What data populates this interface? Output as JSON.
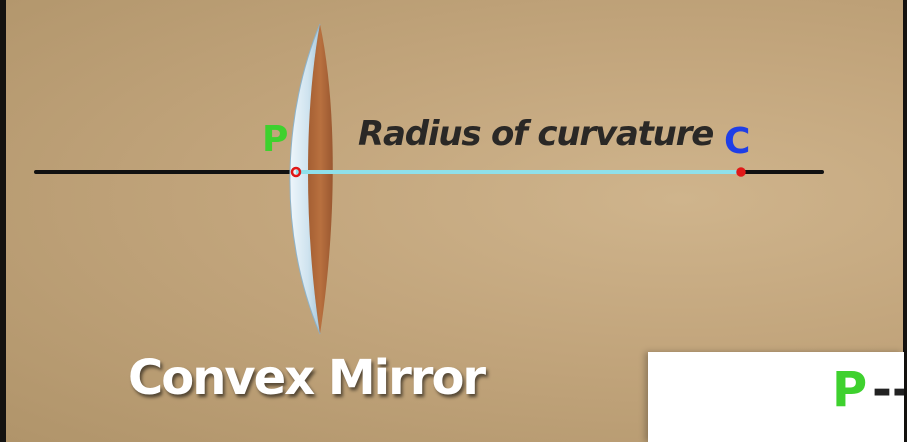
{
  "diagram": {
    "pole_label": "P",
    "center_label": "C",
    "radius_label": "Radius of curvature",
    "title": "Convex Mirror",
    "caption": {
      "symbol": "P",
      "dash": "--"
    }
  },
  "colors": {
    "pole": "#3ed12e",
    "center": "#1f3ee6",
    "radius_line": "#8fe0ea",
    "axis": "#111111",
    "mirror_front": "#dbeaf2",
    "mirror_back": "#b06a3c",
    "point": "#e01818"
  }
}
